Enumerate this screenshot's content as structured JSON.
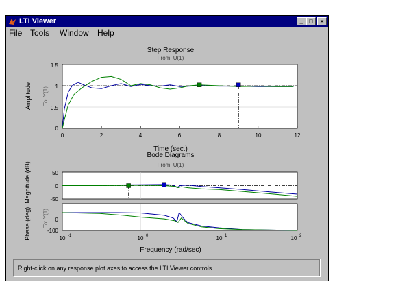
{
  "window": {
    "title": "LTI Viewer",
    "min_label": "_",
    "max_label": "□",
    "close_label": "×"
  },
  "menu": {
    "items": [
      "File",
      "Tools",
      "Window",
      "Help"
    ]
  },
  "step": {
    "title": "Step Response",
    "subtitle": "From: U(1)",
    "ylabel": "Amplitude",
    "to_label": "To: Y(1)",
    "xlabel": "Time (sec.)",
    "yticks": [
      "1.5",
      "1",
      "0.5",
      "0"
    ],
    "xticks": [
      "0",
      "2",
      "4",
      "6",
      "8",
      "10",
      "12"
    ]
  },
  "bode": {
    "title": "Bode Diagrams",
    "subtitle": "From: U(1)",
    "mag_ylabel": "Phase (deg); Magnitude (dB)",
    "mag_to_label": "To: Y(1)",
    "mag_yticks": [
      "50",
      "0",
      "-50"
    ],
    "phase_yticks": [
      "0",
      "-100"
    ],
    "xlabel": "Frequency (rad/sec)",
    "xticks_base": [
      "10",
      "10",
      "10",
      "10"
    ],
    "xticks_exp": [
      "-1",
      "0",
      "1",
      "2"
    ]
  },
  "status": {
    "text": "Right-click on any response plot axes to access the LTI Viewer controls."
  },
  "chart_data": [
    {
      "type": "line",
      "title": "Step Response",
      "subtitle": "From: U(1)",
      "xlabel": "Time (sec.)",
      "ylabel": "Amplitude",
      "xlim": [
        0,
        12
      ],
      "ylim": [
        0,
        1.5
      ],
      "series": [
        {
          "color": "#0000a0",
          "x": [
            0,
            0.1,
            0.3,
            0.5,
            0.8,
            1.1,
            1.5,
            2.0,
            2.5,
            3.0,
            3.5,
            4.0,
            4.5,
            5.0,
            5.5,
            6.0,
            7.0,
            8.0,
            9.0,
            10.0,
            11.0,
            11.8
          ],
          "y": [
            0,
            0.45,
            0.85,
            1.0,
            1.08,
            1.02,
            0.95,
            0.93,
            1.0,
            1.05,
            0.98,
            1.03,
            1.0,
            0.99,
            1.02,
            0.98,
            1.0,
            0.99,
            0.99,
            0.98,
            0.98,
            0.98
          ]
        },
        {
          "color": "#008000",
          "x": [
            0,
            0.1,
            0.3,
            0.6,
            1.0,
            1.5,
            2.0,
            2.5,
            3.0,
            3.5,
            4.0,
            4.5,
            5.0,
            5.5,
            6.0,
            6.5,
            7.0,
            8.0,
            9.0,
            10.0,
            11.0,
            11.8
          ],
          "y": [
            0,
            0.2,
            0.55,
            0.8,
            0.95,
            1.1,
            1.2,
            1.22,
            1.15,
            1.0,
            1.05,
            1.02,
            0.95,
            0.92,
            0.95,
            1.0,
            1.02,
            1.0,
            0.98,
            0.99,
            0.98,
            0.98
          ]
        }
      ],
      "markers": [
        {
          "color": "#008000",
          "x": 7.0,
          "y": 1.02
        },
        {
          "color": "#0000c0",
          "x": 9.0,
          "y": 1.02
        }
      ],
      "reference_x": 9.0,
      "reference_y": 1.0
    },
    {
      "type": "line",
      "title": "Bode Diagrams",
      "subtitle": "From: U(1)",
      "xlabel": "Frequency (rad/sec)",
      "ylabel": "Phase (deg); Magnitude (dB)",
      "xscale": "log",
      "xlim": [
        0.1,
        100
      ],
      "magnitude": {
        "ylim": [
          -50,
          50
        ],
        "series": [
          {
            "color": "#0000a0",
            "x": [
              0.1,
              0.3,
              1,
              2,
              2.6,
              2.9,
              3.2,
              4,
              6,
              10,
              20,
              50,
              100
            ],
            "y": [
              2,
              2,
              3,
              4,
              2,
              -7,
              0,
              2,
              -3,
              -8,
              -15,
              -25,
              -32
            ]
          },
          {
            "color": "#008000",
            "x": [
              0.1,
              0.3,
              1,
              2,
              2.8,
              3.0,
              3.3,
              4,
              6,
              10,
              20,
              50,
              100
            ],
            "y": [
              0,
              0,
              1,
              0,
              -3,
              -8,
              -4,
              -8,
              -12,
              -15,
              -22,
              -32,
              -40
            ]
          }
        ],
        "markers": [
          {
            "color": "#008000",
            "x": 0.7,
            "y": 0
          },
          {
            "color": "#0000c0",
            "x": 2.0,
            "y": 2
          }
        ],
        "reference_x": 0.7,
        "reference_y": 0
      },
      "phase": {
        "ylim": [
          -100,
          50
        ],
        "series": [
          {
            "color": "#0000a0",
            "x": [
              0.1,
              0.5,
              1,
              2,
              2.6,
              2.9,
              3.1,
              3.5,
              4,
              6,
              10,
              20,
              100
            ],
            "y": [
              0,
              0,
              -2,
              -15,
              -30,
              -50,
              0,
              -30,
              -55,
              -75,
              -85,
              -95,
              -100
            ]
          },
          {
            "color": "#008000",
            "x": [
              0.1,
              0.3,
              0.6,
              1,
              2,
              2.7,
              3.0,
              3.3,
              4,
              6,
              10,
              20,
              100
            ],
            "y": [
              0,
              -5,
              -15,
              -25,
              -35,
              -45,
              -55,
              -30,
              -60,
              -80,
              -90,
              -95,
              -100
            ]
          }
        ]
      }
    }
  ]
}
